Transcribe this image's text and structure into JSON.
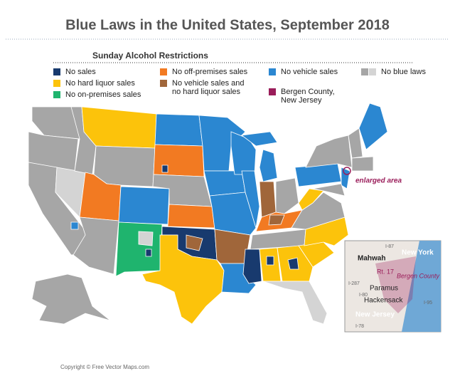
{
  "header": {
    "title": "Blue Laws in the United States, September 2018"
  },
  "legend": {
    "title": "Sunday Alcohol Restrictions",
    "items": [
      {
        "lines": [
          "No sales"
        ],
        "colors": [
          "#183a6e"
        ]
      },
      {
        "lines": [
          "No hard liquor sales"
        ],
        "colors": [
          "#fcc30b"
        ]
      },
      {
        "lines": [
          "No on-premises sales"
        ],
        "colors": [
          "#1fb46e"
        ]
      },
      {
        "lines": [
          "No off-premises sales"
        ],
        "colors": [
          "#f27a22"
        ]
      },
      {
        "lines": [
          "No vehicle sales and",
          "no hard liquor sales"
        ],
        "colors": [
          "#a0663a"
        ]
      },
      {
        "lines": [
          "No vehicle sales"
        ],
        "colors": [
          "#2b87d1"
        ]
      },
      {
        "lines": [
          "Bergen County,",
          "New Jersey"
        ],
        "colors": [
          "#9a1d5a"
        ]
      },
      {
        "lines": [
          "No blue laws"
        ],
        "colors": [
          "#a6a6a6",
          "#d4d4d4"
        ]
      }
    ]
  },
  "map": {
    "callout": "enlarged area"
  },
  "inset": {
    "labels": [
      "Mahwah",
      "New York",
      "Rt. 17",
      "Bergen County",
      "Paramus",
      "Hackensack",
      "New Jersey",
      "I-87",
      "I-287",
      "I-80",
      "I-95",
      "I-78"
    ]
  },
  "footer": {
    "copyright": "Copyright © Free Vector Maps.com"
  }
}
